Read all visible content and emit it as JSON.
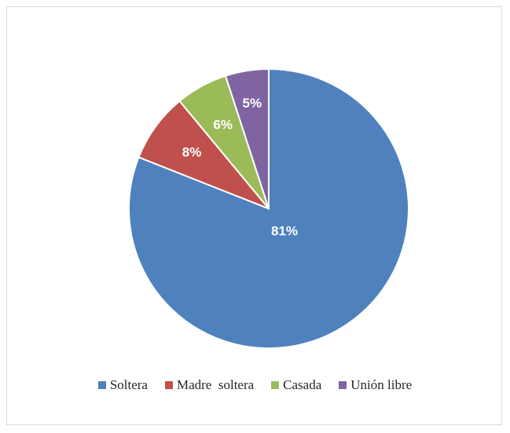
{
  "chart_data": {
    "type": "pie",
    "categories": [
      "Soltera",
      "Madre  soltera",
      "Casada",
      "Unión libre"
    ],
    "values": [
      81,
      8,
      6,
      5
    ],
    "data_labels": [
      "81%",
      "8%",
      "6%",
      "5%"
    ],
    "colors": [
      "#4f81bd",
      "#c0504d",
      "#9bbb59",
      "#8064a2"
    ],
    "legend_position": "bottom",
    "start_angle": "top",
    "direction": "clockwise"
  }
}
